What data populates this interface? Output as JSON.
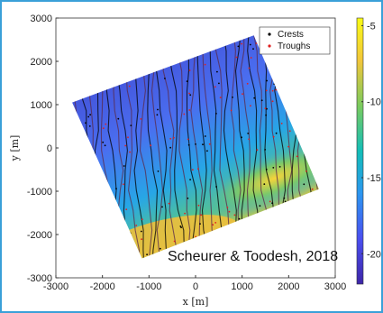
{
  "chart_data": {
    "type": "scatter",
    "title": "",
    "xlabel": "x [m]",
    "ylabel": "y [m]",
    "xlim": [
      -3000,
      3000
    ],
    "ylim": [
      -3000,
      3000
    ],
    "xticks": [
      "-3000",
      "-2000",
      "-1000",
      "0",
      "1000",
      "2000",
      "3000"
    ],
    "yticks": [
      "3000",
      "2000",
      "1000",
      "0",
      "-1000",
      "-2000",
      "-3000"
    ],
    "field_corners": [
      [
        -2650,
        1050
      ],
      [
        1250,
        2600
      ],
      [
        2650,
        -950
      ],
      [
        -1150,
        -2550
      ]
    ],
    "series": [
      {
        "name": "Crests",
        "color": "#000000"
      },
      {
        "name": "Troughs",
        "color": "#e02020"
      }
    ],
    "legend_position": "top-right",
    "colorbar": {
      "ticks": [
        "-5",
        "-10",
        "-15",
        "-20"
      ],
      "range": [
        -22,
        -4.5
      ],
      "colormap": "parula",
      "colors": [
        "#3e26a8",
        "#4a4ff0",
        "#2c96f0",
        "#13beb8",
        "#7acb5e",
        "#f2c63a",
        "#f9fb15"
      ]
    },
    "annotation": "Scheurer & Toodesh, 2018",
    "grid": false
  }
}
